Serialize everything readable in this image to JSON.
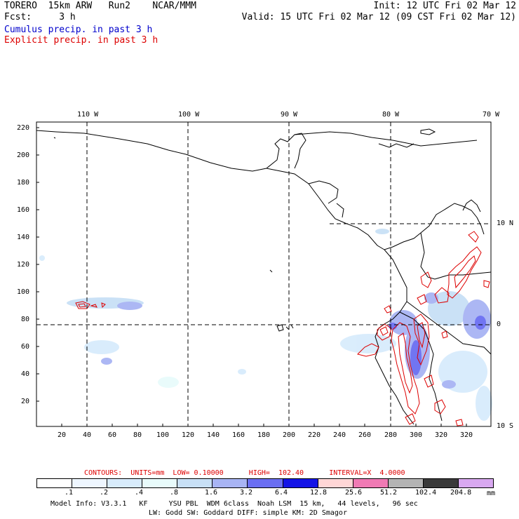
{
  "header": {
    "left_line1": "TORERO  15km ARW   Run2    NCAR/MMM",
    "left_line2": "Fcst:     3 h",
    "right_line1": "Init: 12 UTC Fri 02 Mar 12",
    "right_line2": "Valid: 15 UTC Fri 02 Mar 12 (09 CST Fri 02 Mar 12)",
    "legend_cumulus": "Cumulus precip. in past 3 h",
    "legend_explicit": "Explicit precip. in past 3 h"
  },
  "map": {
    "lon_labels": [
      "110 W",
      "100 W",
      "90 W",
      "80 W",
      "70 W"
    ],
    "lat_labels": [
      "10 N",
      "0",
      "10 S"
    ],
    "x_ticks": [
      "20",
      "40",
      "60",
      "80",
      "100",
      "120",
      "140",
      "160",
      "180",
      "200",
      "220",
      "240",
      "260",
      "280",
      "300",
      "320"
    ],
    "y_ticks": [
      "20",
      "40",
      "60",
      "80",
      "100",
      "120",
      "140",
      "160",
      "180",
      "200",
      "220"
    ],
    "colors": {
      "coast": "#000000",
      "contour": "#dd0000",
      "grid": "#000000"
    }
  },
  "contours_info": {
    "label": "CONTOURS:  UNITS=mm  LOW= 0.10000      HIGH=  102.40      INTERVAL=X  4.0000"
  },
  "colorbar": {
    "labels": [
      ".1",
      ".2",
      ".4",
      ".8",
      "1.6",
      "3.2",
      "6.4",
      "12.8",
      "25.6",
      "51.2",
      "102.4",
      "204.8"
    ],
    "unit": "mm",
    "colors": [
      "#ffffff",
      "#eef6ff",
      "#d8ecfc",
      "#e8fbfb",
      "#c8e0f6",
      "#a8b4f4",
      "#6a6ef2",
      "#1414e6",
      "#ffd6d6",
      "#f07ab4",
      "#b4b4b4",
      "#3a3a3a",
      "#d8a8f0"
    ]
  },
  "footer": {
    "line1": "Model Info: V3.3.1   KF     YSU PBL  WDM 6class  Noah LSM  15 km,   44 levels,   96 sec",
    "line2": "LW: Godd SW: Goddard DIFF: simple KM: 2D Smagor"
  }
}
